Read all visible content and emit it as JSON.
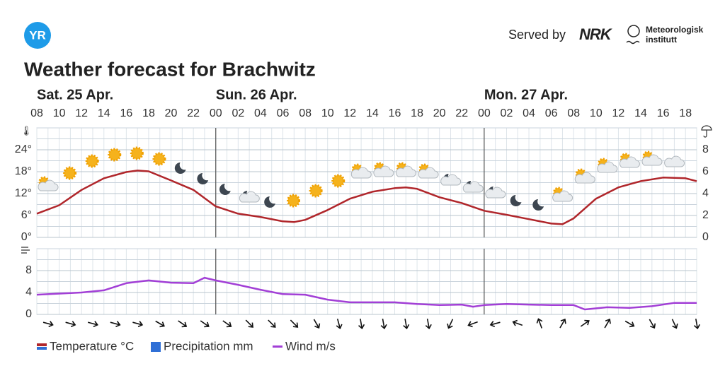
{
  "header": {
    "logo": "YR",
    "served_by": "Served by",
    "nrk": "NRK",
    "met_line1": "Meteorologisk",
    "met_line2": "institutt"
  },
  "chart_data": [
    {
      "type": "line",
      "title": "Weather forecast for Brachwitz",
      "days": [
        {
          "value": 0,
          "label": "Sat. 25 Apr."
        },
        {
          "value": 16,
          "label": "Sun. 26 Apr."
        },
        {
          "value": 40,
          "label": "Mon. 27 Apr."
        }
      ],
      "xlim": [
        0,
        59
      ],
      "xticks": [
        {
          "value": 0,
          "label": "08"
        },
        {
          "value": 2,
          "label": "10"
        },
        {
          "value": 4,
          "label": "12"
        },
        {
          "value": 6,
          "label": "14"
        },
        {
          "value": 8,
          "label": "16"
        },
        {
          "value": 10,
          "label": "18"
        },
        {
          "value": 12,
          "label": "20"
        },
        {
          "value": 14,
          "label": "22"
        },
        {
          "value": 16,
          "label": "00"
        },
        {
          "value": 18,
          "label": "02"
        },
        {
          "value": 20,
          "label": "04"
        },
        {
          "value": 22,
          "label": "06"
        },
        {
          "value": 24,
          "label": "08"
        },
        {
          "value": 26,
          "label": "10"
        },
        {
          "value": 28,
          "label": "12"
        },
        {
          "value": 30,
          "label": "14"
        },
        {
          "value": 32,
          "label": "16"
        },
        {
          "value": 34,
          "label": "18"
        },
        {
          "value": 36,
          "label": "20"
        },
        {
          "value": 38,
          "label": "22"
        },
        {
          "value": 40,
          "label": "00"
        },
        {
          "value": 42,
          "label": "02"
        },
        {
          "value": 44,
          "label": "04"
        },
        {
          "value": 46,
          "label": "06"
        },
        {
          "value": 48,
          "label": "08"
        },
        {
          "value": 50,
          "label": "10"
        },
        {
          "value": 52,
          "label": "12"
        },
        {
          "value": 54,
          "label": "14"
        },
        {
          "value": 56,
          "label": "16"
        },
        {
          "value": 58,
          "label": "18"
        }
      ],
      "ylim": [
        0,
        30
      ],
      "yticks": [
        {
          "value": 0,
          "label": "0°"
        },
        {
          "value": 6,
          "label": "6°"
        },
        {
          "value": 12,
          "label": "12°"
        },
        {
          "value": 18,
          "label": "18°"
        },
        {
          "value": 24,
          "label": "24°"
        }
      ],
      "y2lim": [
        0,
        10
      ],
      "y2ticks": [
        0,
        2,
        4,
        6,
        8
      ],
      "grid": true,
      "series": [
        {
          "name": "Temperature °C",
          "color": "#b0262b",
          "x": [
            0,
            2,
            4,
            6,
            8,
            9,
            10,
            12,
            14,
            16,
            18,
            20,
            22,
            23,
            24,
            26,
            28,
            30,
            32,
            33,
            34,
            36,
            38,
            40,
            42,
            44,
            46,
            47,
            48,
            50,
            52,
            54,
            56,
            58,
            59
          ],
          "values": [
            6.5,
            8.8,
            13,
            16.2,
            17.9,
            18.3,
            18.1,
            15.6,
            13,
            8.5,
            6.5,
            5.6,
            4.4,
            4.2,
            4.8,
            7.5,
            10.6,
            12.5,
            13.5,
            13.7,
            13.3,
            11,
            9.4,
            7.3,
            6.2,
            5,
            3.8,
            3.6,
            5.2,
            10.6,
            13.7,
            15.4,
            16.4,
            16.2,
            15.4
          ]
        },
        {
          "name": "Precipitation mm",
          "color": "#2f6fd6",
          "axis": "y2",
          "x": [
            0,
            4,
            8,
            12,
            16,
            20,
            24,
            28,
            32,
            36,
            40,
            44,
            48,
            52,
            56
          ],
          "values": [
            0,
            0,
            0,
            0,
            0,
            0,
            0,
            0,
            0,
            0,
            0,
            0,
            0,
            0,
            0
          ]
        }
      ]
    },
    {
      "type": "line",
      "xlim": [
        0,
        59
      ],
      "ylim": [
        0,
        12
      ],
      "yticks": [
        0,
        4,
        8
      ],
      "grid": true,
      "series": [
        {
          "name": "Wind m/s",
          "color": "#a23fd6",
          "x": [
            0,
            4,
            6,
            8,
            10,
            12,
            14,
            15,
            16,
            18,
            20,
            22,
            24,
            26,
            28,
            30,
            32,
            34,
            36,
            38,
            39,
            40,
            42,
            44,
            46,
            48,
            49,
            51,
            53,
            55,
            57,
            59
          ],
          "values": [
            3.6,
            4.0,
            4.4,
            5.7,
            6.2,
            5.8,
            5.7,
            6.7,
            6.2,
            5.4,
            4.5,
            3.7,
            3.6,
            2.7,
            2.2,
            2.2,
            2.2,
            1.9,
            1.7,
            1.8,
            1.4,
            1.7,
            1.9,
            1.8,
            1.7,
            1.7,
            0.9,
            1.3,
            1.2,
            1.5,
            2.1,
            2.1
          ]
        }
      ],
      "wind_direction": {
        "x": [
          1,
          3,
          5,
          7,
          9,
          11,
          13,
          15,
          17,
          19,
          21,
          23,
          25,
          27,
          29,
          31,
          33,
          35,
          37,
          39,
          41,
          43,
          45,
          47,
          49,
          51,
          53,
          55,
          57,
          59
        ],
        "values": [
          15,
          15,
          15,
          15,
          15,
          30,
          35,
          35,
          35,
          45,
          45,
          45,
          60,
          75,
          80,
          80,
          80,
          80,
          115,
          160,
          165,
          -160,
          -110,
          -60,
          -35,
          -60,
          30,
          60,
          65,
          80
        ]
      }
    }
  ]
}
